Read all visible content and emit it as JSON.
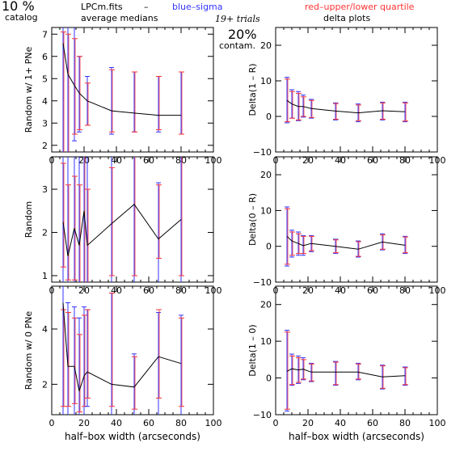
{
  "header": {
    "left_big": "10 %",
    "left_small": "catalog",
    "file": "LPCm.fits",
    "dash": "–",
    "blue_label": "blue–sigma",
    "red_label": "red–upper/lower quartile",
    "avg_label": "average medians",
    "trials": "19+ trials",
    "contam_big": "20%",
    "contam_small": "contam.",
    "delta_label": "delta plots",
    "colors": {
      "blue": "#3333ff",
      "red": "#ff3333",
      "line": "#000000"
    }
  },
  "chart_data": [
    {
      "id": "left-top",
      "type": "line",
      "xlabel": "",
      "ylabel": "Random w/ 1+ PNe",
      "xlim": [
        0,
        100
      ],
      "ylim": [
        1.7,
        7.3
      ],
      "xticks": [
        0,
        20,
        40,
        60,
        80,
        100
      ],
      "xtick_labels": [
        "0",
        "20",
        "40",
        "60",
        "80",
        "100"
      ],
      "yticks": [
        2,
        3,
        4,
        5,
        6,
        7
      ],
      "ytick_labels": [
        "2",
        "3",
        "4",
        "5",
        "6",
        "7"
      ],
      "x": [
        7,
        10,
        14,
        17,
        22,
        37,
        51,
        66,
        80
      ],
      "y": [
        6.6,
        5.2,
        4.7,
        4.35,
        4.0,
        3.55,
        3.45,
        3.35,
        3.35
      ],
      "blue": [
        [
          1.7,
          7.3
        ],
        [
          1.7,
          7.3
        ],
        [
          2.2,
          7.3
        ],
        [
          2.6,
          6.0
        ],
        [
          2.9,
          5.1
        ],
        [
          2.5,
          5.5
        ],
        [
          2.6,
          5.3
        ],
        [
          2.6,
          5.1
        ],
        [
          2.5,
          5.3
        ]
      ],
      "red": [
        [
          1.7,
          7.1
        ],
        [
          1.7,
          7.0
        ],
        [
          2.5,
          6.8
        ],
        [
          2.7,
          6.0
        ],
        [
          2.9,
          4.8
        ],
        [
          2.6,
          5.4
        ],
        [
          2.6,
          5.3
        ],
        [
          2.7,
          5.1
        ],
        [
          2.5,
          5.3
        ]
      ]
    },
    {
      "id": "right-top",
      "type": "line",
      "xlabel": "",
      "ylabel": "Delta(1 – R)",
      "xlim": [
        0,
        100
      ],
      "ylim": [
        -10,
        25
      ],
      "xticks": [
        0,
        20,
        40,
        60,
        80,
        100
      ],
      "xtick_labels": [
        "0",
        "20",
        "40",
        "60",
        "80",
        "100"
      ],
      "yticks": [
        -10,
        0,
        10,
        20
      ],
      "ytick_labels": [
        "−10",
        "0",
        "10",
        "20"
      ],
      "x": [
        7,
        10,
        14,
        17,
        22,
        37,
        51,
        66,
        80
      ],
      "y": [
        4.5,
        3.5,
        2.8,
        2.8,
        2.2,
        1.5,
        1.0,
        1.6,
        1.3
      ],
      "blue": [
        [
          -1.8,
          11.0
        ],
        [
          -0.5,
          7.5
        ],
        [
          -1.2,
          7.0
        ],
        [
          -0.2,
          6.0
        ],
        [
          -0.5,
          4.8
        ],
        [
          -1.0,
          3.8
        ],
        [
          -1.5,
          3.5
        ],
        [
          -1.0,
          4.0
        ],
        [
          -1.5,
          4.0
        ]
      ],
      "red": [
        [
          -1.5,
          10.5
        ],
        [
          -0.5,
          7.0
        ],
        [
          -1.0,
          6.5
        ],
        [
          0.0,
          5.5
        ],
        [
          -0.3,
          4.5
        ],
        [
          -0.8,
          3.6
        ],
        [
          -1.2,
          3.2
        ],
        [
          -0.8,
          3.8
        ],
        [
          -1.3,
          3.8
        ]
      ]
    },
    {
      "id": "left-mid",
      "type": "line",
      "xlabel": "",
      "ylabel": "Random",
      "xlim": [
        0,
        100
      ],
      "ylim": [
        0.85,
        3.75
      ],
      "xticks": [
        0,
        20,
        40,
        60,
        80,
        100
      ],
      "xtick_labels": [
        "0",
        "20",
        "40",
        "60",
        "80",
        "100"
      ],
      "yticks": [
        1,
        2,
        3
      ],
      "ytick_labels": [
        "1",
        "2",
        "3"
      ],
      "x": [
        7,
        10,
        14,
        17,
        20,
        22,
        37,
        51,
        66,
        80
      ],
      "y": [
        2.25,
        1.45,
        2.1,
        1.7,
        2.5,
        1.7,
        2.2,
        2.65,
        1.85,
        2.3
      ],
      "blue": [
        [
          0.85,
          3.75
        ],
        [
          0.85,
          3.75
        ],
        [
          0.85,
          3.75
        ],
        [
          0.85,
          3.75
        ],
        [
          0.85,
          3.75
        ],
        [
          0.85,
          3.75
        ],
        [
          0.85,
          3.75
        ],
        [
          0.85,
          3.75
        ],
        [
          0.85,
          3.15
        ],
        [
          0.85,
          3.75
        ]
      ],
      "red": [
        [
          1.2,
          3.6
        ],
        [
          0.9,
          3.1
        ],
        [
          0.9,
          3.3
        ],
        [
          0.85,
          3.1
        ],
        [
          0.85,
          3.75
        ],
        [
          0.85,
          3.0
        ],
        [
          1.0,
          3.5
        ],
        [
          1.0,
          3.75
        ],
        [
          1.4,
          3.1
        ],
        [
          1.0,
          3.75
        ]
      ]
    },
    {
      "id": "right-mid",
      "type": "line",
      "xlabel": "",
      "ylabel": "Delta(0 – R)",
      "xlim": [
        0,
        100
      ],
      "ylim": [
        -10,
        25
      ],
      "xticks": [
        0,
        20,
        40,
        60,
        80,
        100
      ],
      "xtick_labels": [
        "0",
        "20",
        "40",
        "60",
        "80",
        "100"
      ],
      "yticks": [
        -10,
        0,
        10,
        20
      ],
      "ytick_labels": [
        "−10",
        "0",
        "10",
        "20"
      ],
      "x": [
        7,
        10,
        14,
        17,
        22,
        37,
        51,
        66,
        80
      ],
      "y": [
        2.8,
        1.5,
        0.8,
        0.2,
        0.8,
        0.0,
        -0.8,
        1.2,
        0.3
      ],
      "blue": [
        [
          -5.5,
          11.0
        ],
        [
          -3.0,
          4.5
        ],
        [
          -2.5,
          4.0
        ],
        [
          -2.5,
          3.0
        ],
        [
          -1.5,
          3.0
        ],
        [
          -2.0,
          2.0
        ],
        [
          -3.0,
          1.5
        ],
        [
          -1.0,
          3.5
        ],
        [
          -2.0,
          2.8
        ]
      ],
      "red": [
        [
          -5.0,
          10.5
        ],
        [
          -2.5,
          4.0
        ],
        [
          -2.0,
          3.5
        ],
        [
          -2.0,
          2.8
        ],
        [
          -1.2,
          2.8
        ],
        [
          -1.8,
          1.8
        ],
        [
          -2.8,
          1.3
        ],
        [
          -0.8,
          3.2
        ],
        [
          -1.8,
          2.6
        ]
      ]
    },
    {
      "id": "left-bottom",
      "type": "line",
      "xlabel": "half–box width (arcseconds)",
      "ylabel": "Random w/ 0 PNe",
      "xlim": [
        0,
        100
      ],
      "ylim": [
        0.9,
        5.55
      ],
      "xticks": [
        0,
        20,
        40,
        60,
        80,
        100
      ],
      "xtick_labels": [
        "0",
        "20",
        "40",
        "60",
        "80",
        "100"
      ],
      "yticks": [
        2,
        4
      ],
      "ytick_labels": [
        "2",
        "4"
      ],
      "x": [
        7,
        10,
        14,
        17,
        20,
        22,
        37,
        51,
        66,
        80
      ],
      "y": [
        4.95,
        2.65,
        2.65,
        1.75,
        2.3,
        2.45,
        2.0,
        1.9,
        3.0,
        2.75
      ],
      "blue": [
        [
          0.9,
          5.55
        ],
        [
          0.9,
          4.95
        ],
        [
          0.9,
          4.8
        ],
        [
          0.9,
          4.4
        ],
        [
          0.9,
          4.8
        ],
        [
          1.2,
          4.7
        ],
        [
          0.9,
          5.3
        ],
        [
          0.9,
          3.1
        ],
        [
          0.9,
          4.6
        ],
        [
          0.9,
          4.5
        ]
      ],
      "red": [
        [
          1.2,
          4.7
        ],
        [
          1.2,
          4.6
        ],
        [
          1.3,
          4.4
        ],
        [
          1.0,
          3.8
        ],
        [
          1.2,
          4.5
        ],
        [
          1.5,
          4.7
        ],
        [
          1.2,
          5.3
        ],
        [
          1.1,
          3.0
        ],
        [
          1.5,
          4.7
        ],
        [
          1.2,
          4.4
        ]
      ]
    },
    {
      "id": "right-bottom",
      "type": "line",
      "xlabel": "half–box width (arcseconds)",
      "ylabel": "Delta(1 – 0)",
      "xlim": [
        0,
        100
      ],
      "ylim": [
        -10,
        25
      ],
      "xticks": [
        0,
        20,
        40,
        60,
        80,
        100
      ],
      "xtick_labels": [
        "0",
        "20",
        "40",
        "60",
        "80",
        "100"
      ],
      "yticks": [
        -10,
        0,
        10,
        20
      ],
      "ytick_labels": [
        "−10",
        "0",
        "10",
        "20"
      ],
      "x": [
        7,
        10,
        14,
        17,
        22,
        37,
        51,
        66,
        80
      ],
      "y": [
        1.8,
        2.5,
        2.2,
        2.4,
        1.6,
        1.6,
        1.6,
        0.3,
        0.6
      ],
      "blue": [
        [
          -9.0,
          13.0
        ],
        [
          -2.0,
          6.5
        ],
        [
          -1.5,
          6.0
        ],
        [
          -0.5,
          5.5
        ],
        [
          -1.0,
          4.0
        ],
        [
          -2.0,
          4.5
        ],
        [
          -0.5,
          4.0
        ],
        [
          -3.0,
          3.5
        ],
        [
          -2.0,
          3.0
        ]
      ],
      "red": [
        [
          -8.5,
          12.5
        ],
        [
          -1.8,
          6.0
        ],
        [
          -1.2,
          5.5
        ],
        [
          -0.3,
          5.0
        ],
        [
          -0.8,
          3.8
        ],
        [
          -1.8,
          4.3
        ],
        [
          -0.3,
          3.8
        ],
        [
          -2.8,
          3.3
        ],
        [
          -1.8,
          2.8
        ]
      ]
    }
  ]
}
